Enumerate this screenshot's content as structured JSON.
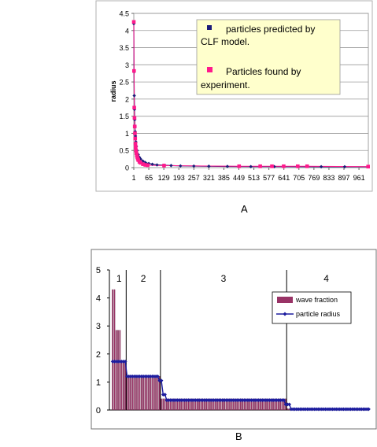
{
  "panels": {
    "a": "A",
    "b": "B"
  },
  "chart_data": [
    {
      "type": "scatter",
      "title": "",
      "xlabel": "",
      "ylabel": "radius",
      "ylim": [
        0,
        4.5
      ],
      "xlim": [
        1,
        1001
      ],
      "y_ticks": [
        "0",
        "0.5",
        "1",
        "1.5",
        "2",
        "2.5",
        "3",
        "3.5",
        "4",
        "4.5"
      ],
      "x_ticks": [
        "1",
        "65",
        "129",
        "193",
        "257",
        "321",
        "385",
        "449",
        "513",
        "577",
        "641",
        "705",
        "769",
        "833",
        "897",
        "961"
      ],
      "grid": true,
      "legend": "top-right",
      "legend_entries": [
        {
          "text": "particles predicted by CLF model.",
          "color": "#1c1c7a"
        },
        {
          "text": "Particles found by experiment.",
          "color": "#ff1a8c"
        }
      ],
      "legend_bg": "#ffffcc",
      "series": [
        {
          "name": "particles predicted by CLF model.",
          "color": "#1c1c7a",
          "x": [
            1,
            2,
            3,
            4,
            5,
            6,
            7,
            8,
            10,
            12,
            15,
            20,
            25,
            30,
            40,
            50,
            65,
            80,
            100,
            129,
            160,
            200,
            257,
            321,
            400,
            500,
            600,
            700,
            800,
            900,
            1000
          ],
          "y": [
            4.2,
            2.8,
            2.1,
            1.7,
            1.4,
            1.2,
            1.05,
            0.92,
            0.75,
            0.62,
            0.5,
            0.38,
            0.3,
            0.25,
            0.19,
            0.15,
            0.12,
            0.1,
            0.08,
            0.07,
            0.06,
            0.05,
            0.045,
            0.04,
            0.035,
            0.03,
            0.03,
            0.028,
            0.026,
            0.025,
            0.025
          ]
        },
        {
          "name": "Particles found by experiment.",
          "color": "#ff1a8c",
          "x": [
            1,
            2,
            3,
            4,
            5,
            6,
            7,
            8,
            9,
            10,
            12,
            14,
            16,
            18,
            20,
            25,
            30,
            40,
            50,
            60,
            130,
            450,
            540,
            590,
            640,
            700,
            740,
            1000
          ],
          "y": [
            4.25,
            2.82,
            1.75,
            1.45,
            1.2,
            1.0,
            0.85,
            0.7,
            0.6,
            0.5,
            0.42,
            0.35,
            0.3,
            0.26,
            0.22,
            0.17,
            0.14,
            0.1,
            0.08,
            0.07,
            0.06,
            0.04,
            0.04,
            0.04,
            0.04,
            0.04,
            0.04,
            0.03
          ]
        }
      ]
    },
    {
      "type": "bar",
      "title": "",
      "xlabel": "",
      "ylabel": "",
      "ylim": [
        0,
        5
      ],
      "y_ticks": [
        "0",
        "1",
        "2",
        "3",
        "4",
        "5"
      ],
      "region_labels": [
        "1",
        "2",
        "3",
        "4"
      ],
      "region_bounds": [
        0,
        8,
        27,
        97,
        141
      ],
      "legend": "right",
      "legend_entries": [
        {
          "text": "wave fraction",
          "color": "#993366"
        },
        {
          "text": "particle radius",
          "color": "#1c1c9e"
        }
      ],
      "series": [
        {
          "name": "wave fraction",
          "color": "#993366",
          "levels": [
            4.3,
            4.3,
            2.85,
            2.85,
            1.75,
            1.2,
            0.4,
            0.05
          ],
          "segment_counts": [
            2,
            0,
            3,
            0,
            3,
            19,
            70,
            44
          ]
        },
        {
          "name": "particle radius",
          "color": "#1c1c9e",
          "levels": [
            1.73,
            1.73,
            1.73,
            1.2,
            1.2,
            1.05,
            0.55,
            0.35,
            0.2,
            0.03
          ],
          "segment_counts": [
            8,
            0,
            0,
            0,
            18,
            2,
            2,
            66,
            3,
            44
          ]
        }
      ]
    }
  ]
}
